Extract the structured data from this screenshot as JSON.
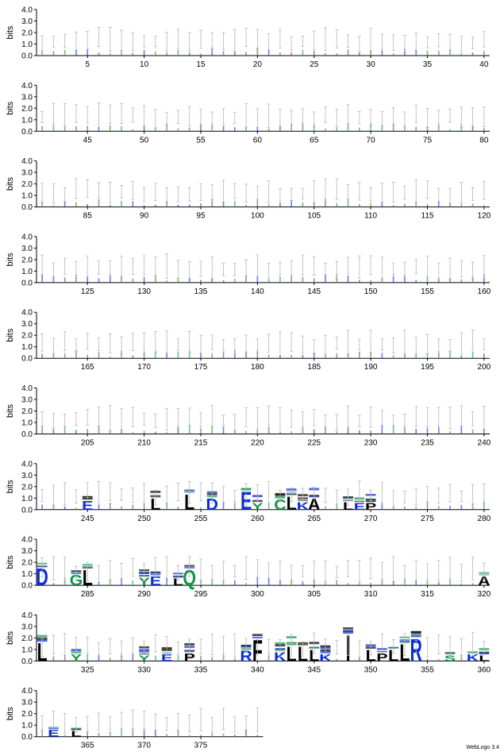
{
  "chart_data": {
    "type": "sequence-logo",
    "ylabel": "bits",
    "ylim": [
      0,
      4.0
    ],
    "yticks": [
      "0.0",
      "1.0",
      "2.0",
      "3.0",
      "4.0"
    ],
    "credit": "WebLogo 3.4",
    "colors": {
      "hydrophobic": "#000000",
      "polar": "#109648",
      "basic": "#0b2cd6",
      "acidic": "#0b2cd6",
      "error_bar": "#b8b8b8"
    },
    "rows": [
      {
        "start": 1,
        "end": 40,
        "xticks": [
          5,
          10,
          15,
          20,
          25,
          30,
          35,
          40
        ]
      },
      {
        "start": 41,
        "end": 80,
        "xticks": [
          45,
          50,
          55,
          60,
          65,
          70,
          75,
          80
        ]
      },
      {
        "start": 81,
        "end": 120,
        "xticks": [
          85,
          90,
          95,
          100,
          105,
          110,
          115,
          120
        ]
      },
      {
        "start": 121,
        "end": 160,
        "xticks": [
          125,
          130,
          135,
          140,
          145,
          150,
          155,
          160
        ]
      },
      {
        "start": 161,
        "end": 200,
        "xticks": [
          165,
          170,
          175,
          180,
          185,
          190,
          195,
          200
        ]
      },
      {
        "start": 201,
        "end": 240,
        "xticks": [
          205,
          210,
          215,
          220,
          225,
          230,
          235,
          240
        ]
      },
      {
        "start": 241,
        "end": 280,
        "xticks": [
          245,
          250,
          255,
          260,
          265,
          270,
          275,
          280
        ]
      },
      {
        "start": 281,
        "end": 320,
        "xticks": [
          285,
          290,
          295,
          300,
          305,
          310,
          315,
          320
        ]
      },
      {
        "start": 321,
        "end": 360,
        "xticks": [
          325,
          330,
          335,
          340,
          345,
          350,
          355,
          360
        ]
      },
      {
        "start": 361,
        "end": 380,
        "xticks": [
          365,
          370,
          375
        ]
      }
    ],
    "prominent_letters": [
      {
        "pos": 245,
        "letter": "E",
        "height": 0.8
      },
      {
        "pos": 251,
        "letter": "L",
        "height": 1.0
      },
      {
        "pos": 254,
        "letter": "L",
        "height": 1.4
      },
      {
        "pos": 256,
        "letter": "D",
        "height": 1.0
      },
      {
        "pos": 259,
        "letter": "E",
        "height": 1.6
      },
      {
        "pos": 260,
        "letter": "Y",
        "height": 0.6
      },
      {
        "pos": 262,
        "letter": "C",
        "height": 0.9
      },
      {
        "pos": 263,
        "letter": "L",
        "height": 1.2
      },
      {
        "pos": 264,
        "letter": "K",
        "height": 0.7
      },
      {
        "pos": 265,
        "letter": "A",
        "height": 1.0
      },
      {
        "pos": 268,
        "letter": "L",
        "height": 0.7
      },
      {
        "pos": 269,
        "letter": "E",
        "height": 0.6
      },
      {
        "pos": 270,
        "letter": "P",
        "height": 0.6
      },
      {
        "pos": 281,
        "letter": "D",
        "height": 1.5
      },
      {
        "pos": 284,
        "letter": "G",
        "height": 0.9
      },
      {
        "pos": 285,
        "letter": "L",
        "height": 1.4
      },
      {
        "pos": 290,
        "letter": "Y",
        "height": 0.7
      },
      {
        "pos": 291,
        "letter": "E",
        "height": 0.8
      },
      {
        "pos": 293,
        "letter": "L",
        "height": 0.6
      },
      {
        "pos": 294,
        "letter": "Q",
        "height": 1.4
      },
      {
        "pos": 320,
        "letter": "A",
        "height": 0.8
      },
      {
        "pos": 321,
        "letter": "L",
        "height": 1.6
      },
      {
        "pos": 324,
        "letter": "Y",
        "height": 0.6
      },
      {
        "pos": 330,
        "letter": "Y",
        "height": 0.5
      },
      {
        "pos": 332,
        "letter": "E",
        "height": 0.6
      },
      {
        "pos": 334,
        "letter": "P",
        "height": 0.7
      },
      {
        "pos": 339,
        "letter": "R",
        "height": 0.9
      },
      {
        "pos": 340,
        "letter": "F",
        "height": 1.9
      },
      {
        "pos": 342,
        "letter": "K",
        "height": 0.8
      },
      {
        "pos": 343,
        "letter": "L",
        "height": 1.3
      },
      {
        "pos": 344,
        "letter": "L",
        "height": 1.3
      },
      {
        "pos": 345,
        "letter": "L",
        "height": 1.0
      },
      {
        "pos": 346,
        "letter": "K",
        "height": 0.6
      },
      {
        "pos": 348,
        "letter": "I",
        "height": 2.3
      },
      {
        "pos": 350,
        "letter": "L",
        "height": 1.0
      },
      {
        "pos": 351,
        "letter": "P",
        "height": 0.7
      },
      {
        "pos": 352,
        "letter": "L",
        "height": 1.0
      },
      {
        "pos": 353,
        "letter": "L",
        "height": 1.5
      },
      {
        "pos": 354,
        "letter": "R",
        "height": 2.0
      },
      {
        "pos": 357,
        "letter": "S",
        "height": 0.5
      },
      {
        "pos": 359,
        "letter": "K",
        "height": 0.6
      },
      {
        "pos": 360,
        "letter": "L",
        "height": 0.5
      },
      {
        "pos": 362,
        "letter": "E",
        "height": 0.6
      },
      {
        "pos": 364,
        "letter": "L",
        "height": 0.5
      }
    ]
  }
}
